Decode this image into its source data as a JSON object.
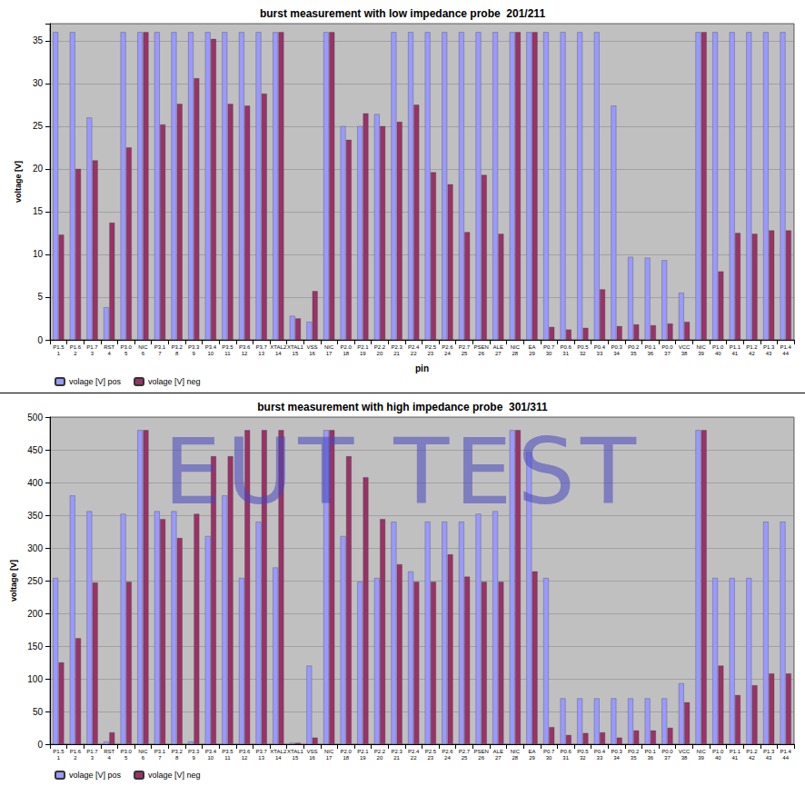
{
  "watermark": "EUT TEST",
  "chart_data": [
    {
      "type": "bar",
      "title": "burst measurement with low impedance probe  201/211",
      "x_label": "pin",
      "y_label": "voltage [V]",
      "categories": [
        "P1.5\n1",
        "P1.6\n2",
        "P1.7\n3",
        "RST\n4",
        "P3.0\n5",
        "NIC\n6",
        "P3.1\n7",
        "P3.2\n8",
        "P3.3\n9",
        "P3.4\n10",
        "P3.5\n11",
        "P3.6\n12",
        "P3.7\n13",
        "XTAL2\n14",
        "XTAL1\n15",
        "VSS\n16",
        "NIC\n17",
        "P2.0\n18",
        "P2.1\n19",
        "P2.2\n20",
        "P2.3\n21",
        "P2.4\n22",
        "P2.5\n23",
        "P2.6\n24",
        "P2.7\n25",
        "PSEN\n26",
        "ALE\n27",
        "NIC\n28",
        "EA\n29",
        "P0.7\n30",
        "P0.6\n31",
        "P0.5\n32",
        "P0.4\n33",
        "P0.3\n34",
        "P0.2\n35",
        "P0.1\n36",
        "P0.0\n37",
        "VCC\n38",
        "NIC\n39",
        "P1.0\n40",
        "P1.1\n41",
        "P1.2\n42",
        "P1.3\n43",
        "P1.4\n44"
      ],
      "series": [
        {
          "name": "volage [V] pos",
          "color": "#9999ff",
          "values": [
            36,
            36,
            26,
            3.8,
            36,
            36,
            36,
            36,
            36,
            36,
            36,
            36,
            36,
            36,
            2.8,
            2.1,
            36,
            25,
            25,
            26.4,
            36,
            36,
            36,
            36,
            36,
            36,
            36,
            36,
            36,
            36,
            36,
            36,
            36,
            27.4,
            9.7,
            9.6,
            9.3,
            5.5,
            36,
            36,
            36,
            36,
            36,
            36
          ]
        },
        {
          "name": "volage [V] neg",
          "color": "#993366",
          "values": [
            12.3,
            20,
            21,
            13.7,
            22.5,
            36,
            25.2,
            27.6,
            30.6,
            35.2,
            27.6,
            27.4,
            28.8,
            36,
            2.5,
            5.7,
            36,
            23.4,
            26.5,
            25,
            25.5,
            27.5,
            19.6,
            18.2,
            12.6,
            19.3,
            12.4,
            36,
            36,
            1.5,
            1.2,
            1.4,
            5.9,
            1.6,
            1.8,
            1.7,
            1.9,
            2.1,
            36,
            8,
            12.5,
            12.4,
            12.8,
            12.8
          ]
        }
      ],
      "ylim": [
        0,
        37
      ],
      "yticks": [
        0,
        5,
        10,
        15,
        20,
        25,
        30,
        35
      ],
      "grid": true,
      "legend": "lower left"
    },
    {
      "type": "bar",
      "title": "burst measurement with high impedance probe  301/311",
      "y_label": "voltage [V]",
      "categories": [
        "P1.5\n1",
        "P1.6\n2",
        "P1.7\n3",
        "RST\n4",
        "P3.0\n5",
        "NIC\n6",
        "P3.1\n7",
        "P3.2\n8",
        "P3.3\n9",
        "P3.4\n10",
        "P3.5\n11",
        "P3.6\n12",
        "P3.7\n13",
        "XTAL2\n14",
        "XTAL1\n15",
        "VSS\n16",
        "NIC\n17",
        "P2.0\n18",
        "P2.1\n19",
        "P2.2\n20",
        "P2.3\n21",
        "P2.4\n22",
        "P2.5\n23",
        "P2.6\n24",
        "P2.7\n25",
        "PSEN\n26",
        "ALE\n27",
        "NIC\n28",
        "EA\n29",
        "P0.7\n30",
        "P0.6\n31",
        "P0.5\n32",
        "P0.4\n33",
        "P0.3\n34",
        "P0.2\n35",
        "P0.1\n36",
        "P0.0\n37",
        "VCC\n38",
        "NIC\n39",
        "P1.0\n40",
        "P1.1\n41",
        "P1.2\n42",
        "P1.3\n43",
        "P1.4\n44"
      ],
      "series": [
        {
          "name": "volage [V] pos",
          "color": "#9999ff",
          "values": [
            254,
            380,
            356,
            4,
            352,
            480,
            356,
            356,
            4,
            318,
            380,
            254,
            340,
            270,
            2,
            120,
            480,
            318,
            248,
            254,
            340,
            264,
            340,
            340,
            340,
            352,
            356,
            480,
            446,
            254,
            70,
            70,
            70,
            70,
            70,
            70,
            70,
            93,
            480,
            254,
            254,
            254,
            340,
            340
          ]
        },
        {
          "name": "volage [V] neg",
          "color": "#993366",
          "values": [
            125,
            162,
            247,
            18,
            248,
            480,
            344,
            315,
            352,
            440,
            440,
            480,
            480,
            480,
            2,
            10,
            480,
            440,
            408,
            344,
            275,
            248,
            248,
            290,
            256,
            248,
            248,
            480,
            264,
            26,
            14,
            17,
            18,
            10,
            21,
            21,
            25,
            64,
            480,
            120,
            75,
            90,
            108,
            108
          ]
        }
      ],
      "ylim": [
        0,
        500
      ],
      "yticks": [
        0,
        50,
        100,
        150,
        200,
        250,
        300,
        350,
        400,
        450,
        500
      ],
      "grid": true,
      "legend": "lower left"
    }
  ]
}
